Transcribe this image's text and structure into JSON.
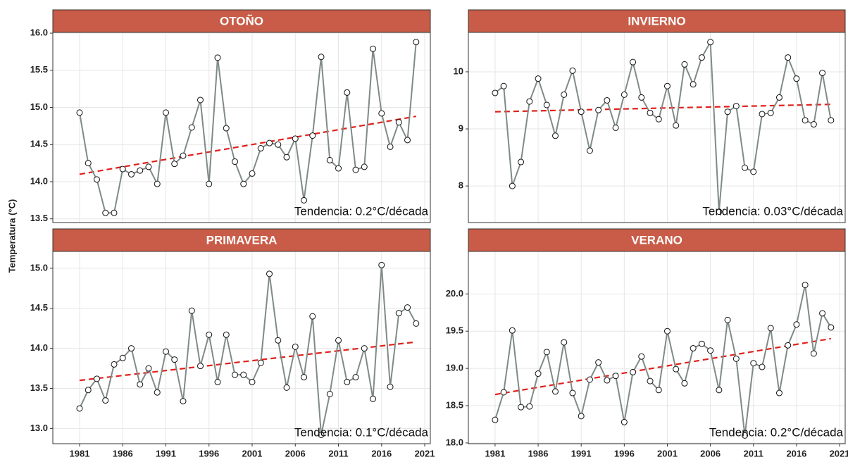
{
  "ylabel": "Temperatura (°C)",
  "chart_data": [
    {
      "type": "line",
      "title": "OTOÑO",
      "annotation": "Tendencia: 0.2°C/década",
      "x_labels": false,
      "x": [
        1981,
        1982,
        1983,
        1984,
        1985,
        1986,
        1987,
        1988,
        1989,
        1990,
        1991,
        1992,
        1993,
        1994,
        1995,
        1996,
        1997,
        1998,
        1999,
        2000,
        2001,
        2002,
        2003,
        2004,
        2005,
        2006,
        2007,
        2008,
        2009,
        2010,
        2011,
        2012,
        2013,
        2014,
        2015,
        2016,
        2017,
        2018,
        2019,
        2020
      ],
      "values": [
        14.93,
        14.25,
        14.03,
        13.58,
        13.58,
        14.17,
        14.1,
        14.15,
        14.2,
        13.97,
        14.93,
        14.24,
        14.35,
        14.73,
        15.1,
        13.97,
        15.67,
        14.72,
        14.27,
        13.97,
        14.11,
        14.45,
        14.52,
        14.5,
        14.33,
        14.58,
        13.75,
        14.62,
        15.68,
        14.29,
        14.18,
        15.2,
        14.16,
        14.2,
        15.79,
        14.92,
        14.47,
        14.8,
        14.56,
        15.88
      ],
      "trend": [
        14.1,
        14.88
      ],
      "color": "#7f8b88",
      "trend_color": "#e0201b",
      "xlim": [
        1977.9,
        2021.65
      ],
      "xticks": [
        1981,
        1986,
        1991,
        1996,
        2001,
        2006,
        2011,
        2016,
        2021
      ],
      "ylim": [
        13.45,
        16.01
      ],
      "yticks": [
        {
          "value": 16,
          "label": "16.0"
        },
        15.5,
        {
          "value": 15,
          "label": "15.0"
        },
        14.5,
        {
          "value": 14,
          "label": "14.0"
        },
        13.5
      ],
      "grid": true
    },
    {
      "type": "line",
      "title": "INVIERNO",
      "annotation": "Tendencia: 0.03°C/década",
      "x_labels": false,
      "x": [
        1981,
        1982,
        1983,
        1984,
        1985,
        1986,
        1987,
        1988,
        1989,
        1990,
        1991,
        1992,
        1993,
        1994,
        1995,
        1996,
        1997,
        1998,
        1999,
        2000,
        2001,
        2002,
        2003,
        2004,
        2005,
        2006,
        2007,
        2008,
        2009,
        2010,
        2011,
        2012,
        2013,
        2014,
        2015,
        2016,
        2017,
        2018,
        2019,
        2020
      ],
      "values": [
        9.63,
        9.75,
        8.0,
        8.42,
        9.48,
        9.88,
        9.42,
        8.88,
        9.6,
        10.02,
        9.3,
        8.62,
        9.33,
        9.5,
        9.02,
        9.6,
        10.17,
        9.55,
        9.28,
        9.17,
        9.75,
        9.06,
        10.13,
        9.78,
        10.25,
        10.52,
        7.55,
        9.3,
        9.4,
        8.32,
        8.25,
        9.26,
        9.28,
        9.55,
        10.25,
        9.88,
        9.15,
        9.08,
        9.98,
        9.15
      ],
      "trend": [
        9.3,
        9.43
      ],
      "color": "#7f8b88",
      "trend_color": "#e0201b",
      "xlim": [
        1977.9,
        2021.65
      ],
      "xticks": [
        1981,
        1986,
        1991,
        1996,
        2001,
        2006,
        2011,
        2016,
        2021
      ],
      "ylim": [
        7.36,
        10.69
      ],
      "yticks": [
        10,
        9,
        8
      ],
      "grid": true
    },
    {
      "type": "line",
      "title": "PRIMAVERA",
      "annotation": "Tendencia: 0.1°C/década",
      "x_labels": true,
      "x": [
        1981,
        1982,
        1983,
        1984,
        1985,
        1986,
        1987,
        1988,
        1989,
        1990,
        1991,
        1992,
        1993,
        1994,
        1995,
        1996,
        1997,
        1998,
        1999,
        2000,
        2001,
        2002,
        2003,
        2004,
        2005,
        2006,
        2007,
        2008,
        2009,
        2010,
        2011,
        2012,
        2013,
        2014,
        2015,
        2016,
        2017,
        2018,
        2019,
        2020
      ],
      "values": [
        13.25,
        13.48,
        13.62,
        13.35,
        13.8,
        13.88,
        14.0,
        13.55,
        13.75,
        13.45,
        13.96,
        13.86,
        13.34,
        14.47,
        13.78,
        14.17,
        13.58,
        14.17,
        13.67,
        13.67,
        13.58,
        13.82,
        14.93,
        14.1,
        13.51,
        14.02,
        13.64,
        14.4,
        12.92,
        13.43,
        14.1,
        13.58,
        13.64,
        14.0,
        13.37,
        15.04,
        13.52,
        14.44,
        14.51,
        14.31
      ],
      "trend": [
        13.6,
        14.08
      ],
      "color": "#7f8b88",
      "trend_color": "#e0201b",
      "xlim": [
        1977.9,
        2021.65
      ],
      "xticks": [
        1981,
        1986,
        1991,
        1996,
        2001,
        2006,
        2011,
        2016,
        2021
      ],
      "ylim": [
        12.81,
        15.21
      ],
      "yticks": [
        {
          "value": 15,
          "label": "15.0"
        },
        14.5,
        {
          "value": 14,
          "label": "14.0"
        },
        13.5,
        {
          "value": 13,
          "label": "13.0"
        }
      ],
      "grid": true
    },
    {
      "type": "line",
      "title": "VERANO",
      "annotation": "Tendencia: 0.2°C/década",
      "x_labels": true,
      "x": [
        1981,
        1982,
        1983,
        1984,
        1985,
        1986,
        1987,
        1988,
        1989,
        1990,
        1991,
        1992,
        1993,
        1994,
        1995,
        1996,
        1997,
        1998,
        1999,
        2000,
        2001,
        2002,
        2003,
        2004,
        2005,
        2006,
        2007,
        2008,
        2009,
        2010,
        2011,
        2012,
        2013,
        2014,
        2015,
        2016,
        2017,
        2018,
        2019,
        2020
      ],
      "values": [
        18.31,
        18.68,
        19.51,
        18.48,
        18.49,
        18.93,
        19.22,
        18.69,
        19.35,
        18.67,
        18.36,
        18.85,
        19.08,
        18.84,
        18.9,
        18.28,
        18.95,
        19.16,
        18.83,
        18.71,
        19.5,
        18.99,
        18.8,
        19.27,
        19.33,
        19.24,
        18.71,
        19.65,
        19.13,
        18.1,
        19.07,
        19.02,
        19.54,
        18.67,
        19.31,
        19.59,
        20.12,
        19.2,
        19.74,
        19.55
      ],
      "trend": [
        18.65,
        19.4
      ],
      "color": "#7f8b88",
      "trend_color": "#e0201b",
      "xlim": [
        1977.9,
        2021.65
      ],
      "xticks": [
        1981,
        1986,
        1991,
        1996,
        2001,
        2006,
        2011,
        2016,
        2021
      ],
      "ylim": [
        17.99,
        20.57
      ],
      "yticks": [
        {
          "value": 20,
          "label": "20.0"
        },
        19.5,
        {
          "value": 19,
          "label": "19.0"
        },
        18.5,
        {
          "value": 18,
          "label": "18.0"
        }
      ],
      "grid": true
    }
  ]
}
